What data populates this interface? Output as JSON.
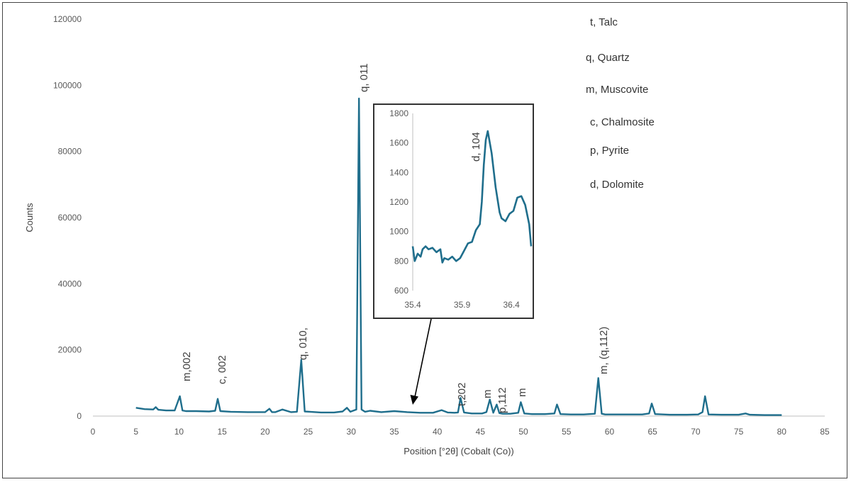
{
  "chart_data": {
    "type": "line",
    "xlabel": "Position [°2θ] (Cobalt (Co))",
    "ylabel": "Counts",
    "xlim": [
      0,
      85
    ],
    "ylim": [
      0,
      120000
    ],
    "x_ticks": [
      0,
      5,
      10,
      15,
      20,
      25,
      30,
      35,
      40,
      45,
      50,
      55,
      60,
      65,
      70,
      75,
      80,
      85
    ],
    "y_ticks": [
      0,
      20000,
      40000,
      60000,
      80000,
      100000,
      120000
    ],
    "grid": false,
    "line_color": "#1f6e8c",
    "series": [
      {
        "x": [
          5,
          6,
          7,
          7.3,
          7.6,
          8.5,
          9.5,
          10.1,
          10.4,
          10.8,
          12,
          13.5,
          14.2,
          14.5,
          14.8,
          16,
          18,
          20,
          20.5,
          20.8,
          21.2,
          22,
          23,
          23.7,
          24.2,
          24.6,
          25.2,
          26.5,
          28,
          29,
          29.5,
          29.9,
          30.6,
          30.9,
          31.2,
          31.6,
          32.2,
          33.5,
          35,
          36.5,
          38,
          39.5,
          40.5,
          41.2,
          42,
          42.4,
          42.7,
          43.1,
          44,
          45.2,
          45.7,
          46.1,
          46.5,
          46.9,
          47.2,
          47.6,
          48.5,
          49.4,
          49.7,
          50.1,
          51,
          52.5,
          53.6,
          53.9,
          54.3,
          55.5,
          57,
          58.3,
          58.7,
          59.1,
          59.5,
          60.5,
          62,
          63.8,
          64.6,
          64.9,
          65.3,
          67,
          69,
          70.3,
          70.8,
          71.1,
          71.5,
          73,
          75,
          75.8,
          76.3,
          78,
          80
        ],
        "y": [
          2500,
          2100,
          2000,
          2700,
          1900,
          1700,
          1700,
          6000,
          1700,
          1500,
          1500,
          1400,
          1600,
          5200,
          1500,
          1300,
          1200,
          1200,
          2200,
          1200,
          1200,
          2000,
          1200,
          1300,
          17000,
          1400,
          1300,
          1100,
          1100,
          1400,
          2500,
          1300,
          2000,
          96000,
          2000,
          1300,
          1600,
          1200,
          1500,
          1200,
          1000,
          1000,
          1800,
          1100,
          1000,
          1100,
          5500,
          1100,
          800,
          800,
          1200,
          5000,
          1000,
          3500,
          900,
          700,
          700,
          1000,
          4200,
          800,
          600,
          600,
          800,
          3500,
          600,
          500,
          500,
          700,
          11500,
          700,
          500,
          500,
          500,
          500,
          800,
          3800,
          600,
          400,
          400,
          500,
          1200,
          6000,
          500,
          400,
          400,
          800,
          400,
          300,
          300
        ]
      }
    ],
    "annotations": [
      "m,002",
      "c, 002",
      "q, 010,",
      "q, 011",
      "t,202",
      "m",
      "p,112",
      "m",
      "m, (q,112)"
    ],
    "legend": [
      "t, Talc",
      "q, Quartz",
      "m, Muscovite",
      "c, Chalmosite",
      "p, Pyrite",
      "d, Dolomite"
    ],
    "inset": {
      "type": "line",
      "xlim": [
        35.4,
        36.6
      ],
      "ylim": [
        600,
        1800
      ],
      "x_ticks": [
        "35.4",
        "35.9",
        "36.4"
      ],
      "y_ticks": [
        600,
        800,
        1000,
        1200,
        1400,
        1600,
        1800
      ],
      "annotation": "d, 104",
      "series": [
        {
          "x": [
            35.4,
            35.42,
            35.45,
            35.48,
            35.5,
            35.53,
            35.56,
            35.6,
            35.64,
            35.68,
            35.7,
            35.72,
            35.76,
            35.8,
            35.84,
            35.88,
            35.92,
            35.96,
            36.0,
            36.04,
            36.08,
            36.1,
            36.12,
            36.14,
            36.16,
            36.2,
            36.24,
            36.28,
            36.3,
            36.34,
            36.38,
            36.42,
            36.46,
            36.5,
            36.54,
            36.58,
            36.6
          ],
          "y": [
            900,
            800,
            850,
            830,
            880,
            900,
            880,
            890,
            860,
            880,
            790,
            820,
            810,
            830,
            800,
            820,
            870,
            920,
            930,
            1010,
            1050,
            1200,
            1450,
            1620,
            1680,
            1530,
            1300,
            1130,
            1090,
            1070,
            1120,
            1140,
            1230,
            1240,
            1180,
            1050,
            900
          ]
        }
      ]
    }
  }
}
